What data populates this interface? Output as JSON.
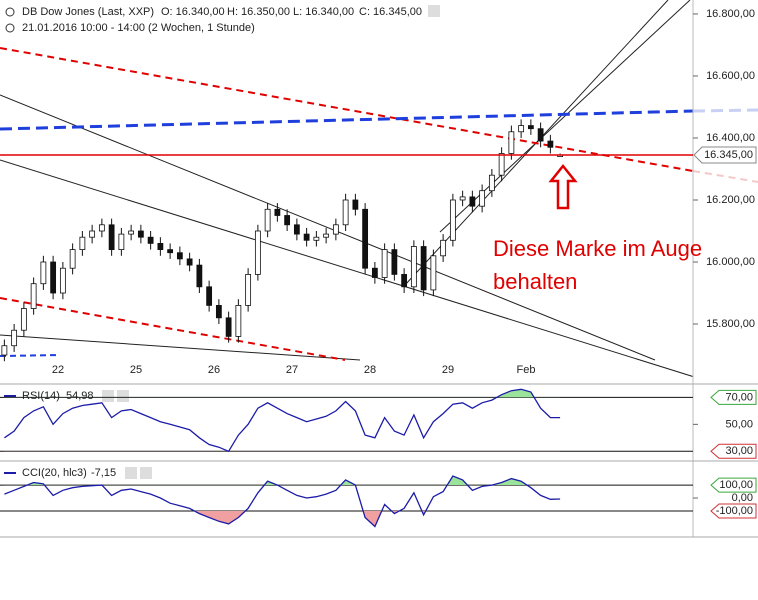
{
  "header": {
    "title": "DB Dow Jones (Last, XXP)",
    "open": "O: 16.340,00",
    "high": "H: 16.350,00",
    "low": "L: 16.340,00",
    "close": "C: 16.345,00",
    "range": "21.01.2016 10:00 - 14:00 (2 Wochen, 1 Stunde)"
  },
  "annotation": "Diese Marke im Auge behalten",
  "chart_data": [
    {
      "type": "candlestick",
      "categories": [
        null,
        null,
        null,
        null,
        null,
        null,
        "22",
        null,
        null,
        null,
        null,
        null,
        null,
        null,
        "25",
        null,
        null,
        null,
        null,
        null,
        null,
        null,
        "26",
        null,
        null,
        null,
        null,
        null,
        null,
        null,
        "27",
        null,
        null,
        null,
        null,
        null,
        null,
        null,
        "28",
        null,
        null,
        null,
        null,
        null,
        null,
        null,
        "29",
        null,
        null,
        null,
        null,
        null,
        null,
        null,
        "Feb",
        null,
        null,
        null
      ],
      "open": [
        15700,
        15730,
        15780,
        15850,
        15930,
        16000,
        15900,
        15980,
        16040,
        16080,
        16100,
        16120,
        16040,
        16090,
        16100,
        16080,
        16060,
        16040,
        16030,
        16010,
        15990,
        15920,
        15860,
        15820,
        15760,
        15860,
        15960,
        16100,
        16170,
        16150,
        16120,
        16090,
        16070,
        16080,
        16090,
        16120,
        16200,
        16170,
        15980,
        15950,
        16040,
        15960,
        15920,
        16050,
        15910,
        16020,
        16070,
        16200,
        16210,
        16180,
        16230,
        16280,
        16350,
        16420,
        16440,
        16430,
        16390,
        16340
      ],
      "high": [
        15750,
        15800,
        15870,
        15950,
        16020,
        16020,
        16000,
        16060,
        16100,
        16120,
        16140,
        16140,
        16110,
        16120,
        16120,
        16100,
        16080,
        16060,
        16050,
        16030,
        16010,
        15940,
        15880,
        15840,
        15880,
        15980,
        16120,
        16190,
        16190,
        16170,
        16140,
        16110,
        16100,
        16110,
        16140,
        16220,
        16220,
        16190,
        16000,
        16060,
        16060,
        15980,
        16070,
        16070,
        16040,
        16090,
        16220,
        16230,
        16230,
        16250,
        16300,
        16370,
        16440,
        16460,
        16460,
        16450,
        16410,
        16350
      ],
      "low": [
        15680,
        15710,
        15760,
        15830,
        15910,
        15880,
        15880,
        15960,
        16020,
        16060,
        16080,
        16020,
        16020,
        16070,
        16060,
        16040,
        16020,
        16010,
        15990,
        15970,
        15900,
        15840,
        15800,
        15740,
        15740,
        15840,
        15940,
        16080,
        16130,
        16100,
        16070,
        16050,
        16050,
        16060,
        16070,
        16100,
        16150,
        15960,
        15930,
        15930,
        15940,
        15900,
        15900,
        15890,
        15890,
        16000,
        16050,
        16180,
        16160,
        16160,
        16210,
        16260,
        16330,
        16400,
        16410,
        16370,
        16350,
        16340
      ],
      "close": [
        15730,
        15780,
        15850,
        15930,
        16000,
        15900,
        15980,
        16040,
        16080,
        16100,
        16120,
        16040,
        16090,
        16100,
        16080,
        16060,
        16040,
        16030,
        16010,
        15990,
        15920,
        15860,
        15820,
        15760,
        15860,
        15960,
        16100,
        16170,
        16150,
        16120,
        16090,
        16070,
        16080,
        16090,
        16120,
        16200,
        16170,
        15980,
        15950,
        16040,
        15960,
        15920,
        16050,
        15910,
        16020,
        16070,
        16200,
        16210,
        16180,
        16230,
        16280,
        16350,
        16420,
        16440,
        16430,
        16390,
        16370,
        16345
      ],
      "ylim": [
        15613,
        16845
      ],
      "yticks": [
        {
          "value": 16800,
          "label": "16.800,00"
        },
        {
          "value": 16600,
          "label": "16.600,00"
        },
        {
          "value": 16400,
          "label": "16.400,00"
        },
        {
          "value": 16200,
          "label": "16.200,00"
        },
        {
          "value": 16000,
          "label": "16.000,00"
        },
        {
          "value": 15800,
          "label": "15.800,00"
        }
      ],
      "last_price": {
        "value": 16345,
        "label": "16.345,00"
      },
      "last_price_color": "#e00000"
    },
    {
      "type": "line",
      "title": "RSI(14)",
      "legend_value": "54,98",
      "color": "#1c1ca8",
      "values": [
        40,
        45,
        55,
        60,
        63,
        50,
        58,
        62,
        64,
        65,
        66,
        55,
        60,
        61,
        58,
        55,
        52,
        50,
        48,
        46,
        40,
        35,
        33,
        30,
        42,
        50,
        62,
        66,
        62,
        58,
        55,
        52,
        54,
        56,
        60,
        67,
        60,
        42,
        40,
        55,
        45,
        42,
        57,
        40,
        52,
        58,
        65,
        66,
        62,
        66,
        68,
        72,
        75,
        76,
        74,
        62,
        55,
        54.98
      ],
      "ylim": [
        25,
        77
      ],
      "yticks": [
        {
          "value": 70,
          "label": "70,00"
        },
        {
          "value": 50,
          "label": "50,00"
        },
        {
          "value": 30,
          "label": "30,00"
        }
      ],
      "above_color": "#9be39b",
      "below_color": "#f0a0a0"
    },
    {
      "type": "line",
      "title": "CCI(20, hlc3)",
      "legend_value": "-7,15",
      "color": "#1c1ca8",
      "values": [
        30,
        60,
        90,
        120,
        110,
        20,
        60,
        80,
        90,
        95,
        100,
        20,
        60,
        70,
        50,
        30,
        0,
        -40,
        -60,
        -80,
        -120,
        -150,
        -180,
        -200,
        -150,
        -80,
        40,
        130,
        100,
        60,
        20,
        0,
        10,
        30,
        60,
        140,
        100,
        -150,
        -220,
        -50,
        -120,
        -80,
        40,
        -130,
        10,
        50,
        170,
        140,
        60,
        90,
        100,
        120,
        150,
        130,
        80,
        20,
        -10,
        -7.15
      ],
      "ylim": [
        -270,
        255
      ],
      "yticks": [
        {
          "value": 100,
          "label": "100,00"
        },
        {
          "value": 0,
          "label": "0,00"
        },
        {
          "value": -100,
          "label": "-100,00"
        }
      ],
      "above_color": "#9be39b",
      "below_color": "#f0a0a0"
    }
  ]
}
